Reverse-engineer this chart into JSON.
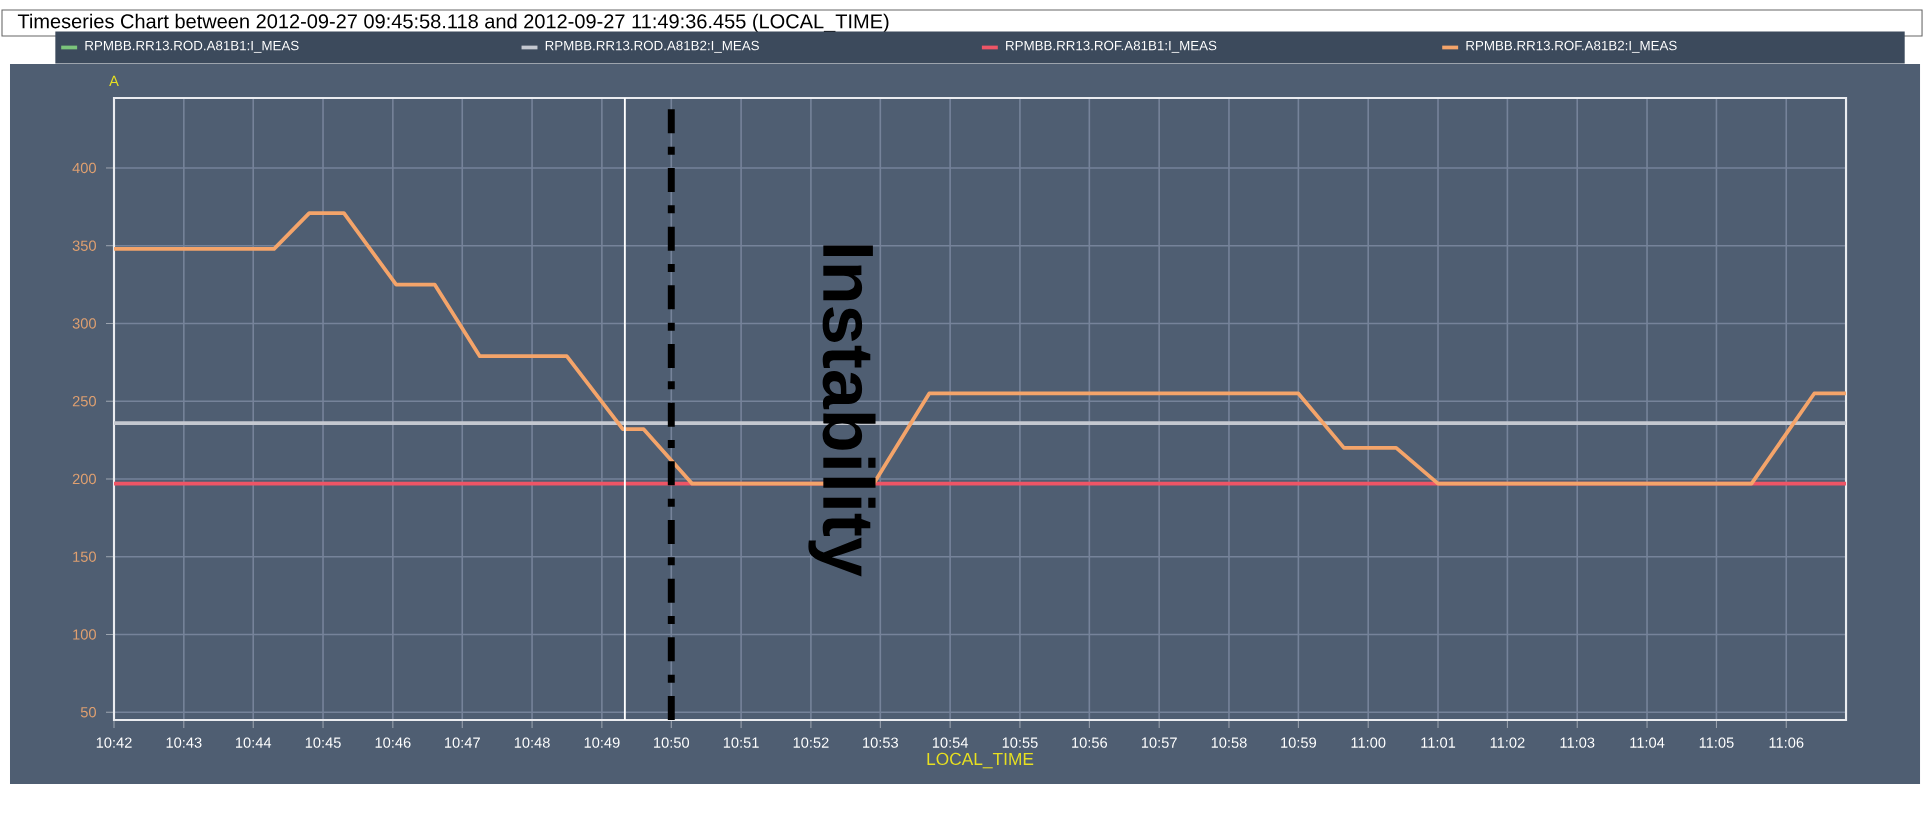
{
  "chart_data": {
    "type": "line",
    "title": "Timeseries Chart between 2012-09-27 09:45:58.118 and 2012-09-27 11:49:36.455 (LOCAL_TIME)",
    "xlabel": "LOCAL_TIME",
    "ylabel": "A",
    "series": [
      {
        "name": "RPMBB.RR13.ROD.A81B1:I_MEAS",
        "color": "#7bc47b"
      },
      {
        "name": "RPMBB.RR13.ROD.A81B2:I_MEAS",
        "color": "#c4c8d0",
        "x": [
          10.7,
          11.1143
        ],
        "values": [
          236,
          236
        ]
      },
      {
        "name": "RPMBB.RR13.ROF.A81B1:I_MEAS",
        "color": "#ee5566",
        "x": [
          10.7,
          11.1143
        ],
        "values": [
          197,
          197
        ]
      },
      {
        "name": "RPMBB.RR13.ROF.A81B2:I_MEAS",
        "color": "#f4a46a",
        "x": [
          10.7,
          10.7383,
          10.7467,
          10.755,
          10.7675,
          10.7767,
          10.7875,
          10.8083,
          10.8217,
          10.8267,
          10.8383,
          10.8817,
          10.895,
          10.9833,
          10.9942,
          11.0067,
          11.0167,
          11.0917,
          11.1067,
          11.1143
        ],
        "values": [
          348,
          348,
          371,
          371,
          325,
          325,
          279,
          279,
          232,
          232,
          197,
          197,
          255,
          255,
          220,
          220,
          197,
          197,
          255,
          255
        ]
      }
    ],
    "xlim": [
      10.7,
      11.1143
    ],
    "ylim": [
      45,
      445
    ],
    "xticks": [
      {
        "value": 10.7,
        "label": "10:42"
      },
      {
        "value": 10.7167,
        "label": "10:43"
      },
      {
        "value": 10.7333,
        "label": "10:44"
      },
      {
        "value": 10.75,
        "label": "10:45"
      },
      {
        "value": 10.7667,
        "label": "10:46"
      },
      {
        "value": 10.7833,
        "label": "10:47"
      },
      {
        "value": 10.8,
        "label": "10:48"
      },
      {
        "value": 10.8167,
        "label": "10:49"
      },
      {
        "value": 10.8333,
        "label": "10:50"
      },
      {
        "value": 10.85,
        "label": "10:51"
      },
      {
        "value": 10.8667,
        "label": "10:52"
      },
      {
        "value": 10.8833,
        "label": "10:53"
      },
      {
        "value": 10.9,
        "label": "10:54"
      },
      {
        "value": 10.9167,
        "label": "10:55"
      },
      {
        "value": 10.9333,
        "label": "10:56"
      },
      {
        "value": 10.95,
        "label": "10:57"
      },
      {
        "value": 10.9667,
        "label": "10:58"
      },
      {
        "value": 10.9833,
        "label": "10:59"
      },
      {
        "value": 11.0,
        "label": "11:00"
      },
      {
        "value": 11.0167,
        "label": "11:01"
      },
      {
        "value": 11.0333,
        "label": "11:02"
      },
      {
        "value": 11.05,
        "label": "11:03"
      },
      {
        "value": 11.0667,
        "label": "11:04"
      },
      {
        "value": 11.0833,
        "label": "11:05"
      },
      {
        "value": 11.1,
        "label": "11:06"
      }
    ],
    "yticks": [
      50,
      100,
      150,
      200,
      250,
      300,
      350,
      400
    ],
    "ref_lines": [
      {
        "axis": "x",
        "value": 10.8222,
        "color": "#ffffff",
        "line_style": "solid"
      },
      {
        "axis": "x",
        "value": 10.8333,
        "label": "Instability",
        "color": "#000000",
        "line_style": "dashdot"
      }
    ],
    "grid": true,
    "legend": "top",
    "marker": "none",
    "line_style": "solid"
  }
}
